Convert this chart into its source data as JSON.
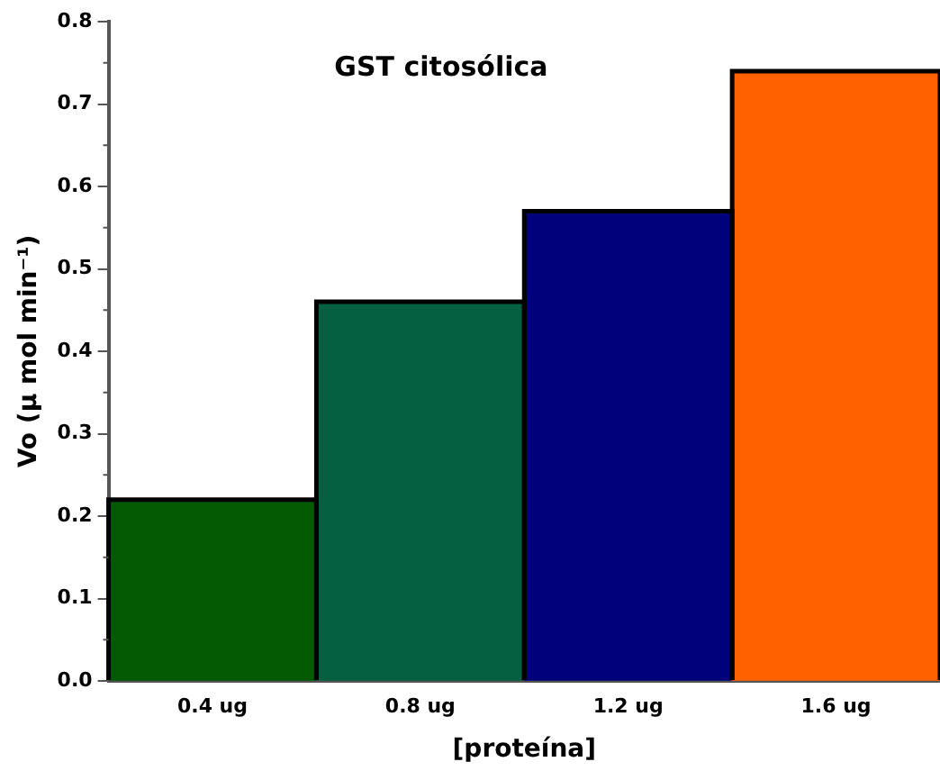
{
  "chart_data": {
    "type": "bar",
    "title": "GST citosólica",
    "xlabel": "[proteína]",
    "ylabel": "Vo (μ mol min⁻¹)",
    "categories": [
      "0.4 ug",
      "0.8 ug",
      "1.2 ug",
      "1.6 ug"
    ],
    "values": [
      0.22,
      0.46,
      0.57,
      0.74
    ],
    "colors": [
      "#035a03",
      "#046040",
      "#01017c",
      "#ff6000"
    ],
    "ylim": [
      0,
      0.8
    ],
    "yticks": [
      {
        "value": 0,
        "label": "0.0"
      },
      0.1,
      0.2,
      0.3,
      0.4,
      0.5,
      0.6,
      0.7,
      0.8
    ],
    "grid": false,
    "legend": false
  }
}
